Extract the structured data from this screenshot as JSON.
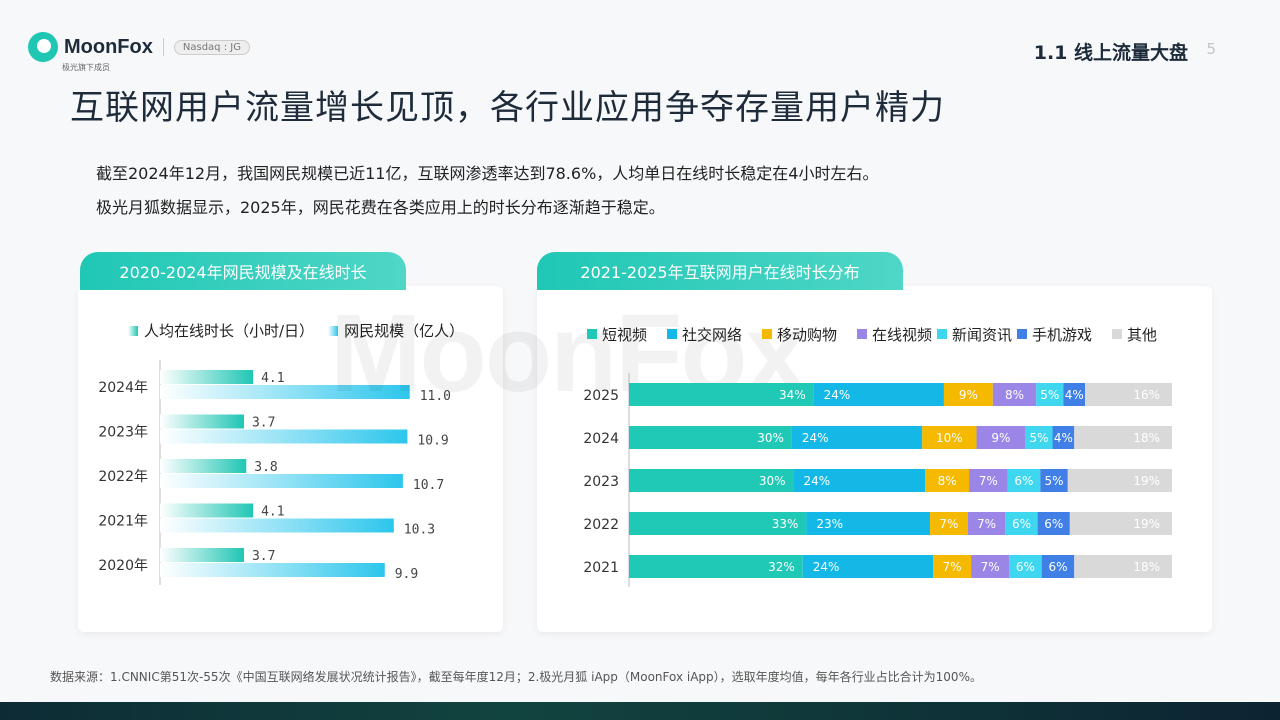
{
  "brand": {
    "name": "MoonFox",
    "sub": "极光旗下成员",
    "badge": "Nasdaq : JG"
  },
  "section": {
    "label": "1.1 线上流量大盘",
    "page": "5"
  },
  "title": "互联网用户流量增长见顶，各行业应用争夺存量用户精力",
  "description": [
    "截至2024年12月，我国网民规模已近11亿，互联网渗透率达到78.6%，人均单日在线时长稳定在4小时左右。",
    "极光月狐数据显示，2025年，网民花费在各类应用上的时长分布逐渐趋于稳定。"
  ],
  "left_panel": {
    "tab": "2020-2024年网民规模及在线时长",
    "legend": [
      "人均在线时长（小时/日）",
      "网民规模（亿人）"
    ]
  },
  "right_panel": {
    "tab": "2021-2025年互联网用户在线时长分布"
  },
  "watermark": "MoonFox",
  "footer": "数据来源：1.CNNIC第51次-55次《中国互联网络发展状况统计报告》，截至每年度12月；2.极光月狐 iApp（MoonFox iApp），选取年度均值，每年各行业占比合计为100%。",
  "colors": {
    "teal": "#20c9b5",
    "cyan": "#14b8e6",
    "yellow": "#f5b900",
    "purple": "#9b86e8",
    "light_cyan": "#3fd7ef",
    "blue": "#3f7fe6",
    "gray": "#d9d9d9"
  },
  "chart_data": [
    {
      "type": "bar",
      "orientation": "horizontal",
      "categories": [
        "2024年",
        "2023年",
        "2022年",
        "2021年",
        "2020年"
      ],
      "series": [
        {
          "name": "人均在线时长（小时/日）",
          "values": [
            4.1,
            3.7,
            3.8,
            4.1,
            3.7
          ],
          "labels": [
            "4.1",
            "3.7",
            "3.8",
            "4.1",
            "3.7"
          ]
        },
        {
          "name": "网民规模（亿人）",
          "values": [
            11.0,
            10.9,
            10.7,
            10.3,
            9.9
          ],
          "labels": [
            "11.0",
            "10.9",
            "10.7",
            "10.3",
            "9.9"
          ]
        }
      ],
      "legend_position": "top"
    },
    {
      "type": "bar",
      "orientation": "horizontal",
      "stacked": true,
      "categories": [
        "2025",
        "2024",
        "2023",
        "2022",
        "2021"
      ],
      "series": [
        {
          "name": "短视频",
          "values": [
            34,
            30,
            30,
            33,
            32
          ]
        },
        {
          "name": "社交网络",
          "values": [
            24,
            24,
            24,
            23,
            24
          ]
        },
        {
          "name": "移动购物",
          "values": [
            9,
            10,
            8,
            7,
            7
          ]
        },
        {
          "name": "在线视频",
          "values": [
            8,
            9,
            7,
            7,
            7
          ]
        },
        {
          "name": "新闻资讯",
          "values": [
            5,
            5,
            6,
            6,
            6
          ]
        },
        {
          "name": "手机游戏",
          "values": [
            4,
            4,
            5,
            6,
            6
          ]
        },
        {
          "name": "其他",
          "values": [
            16,
            18,
            19,
            19,
            18
          ]
        }
      ],
      "unit": "%",
      "legend_position": "top"
    }
  ]
}
